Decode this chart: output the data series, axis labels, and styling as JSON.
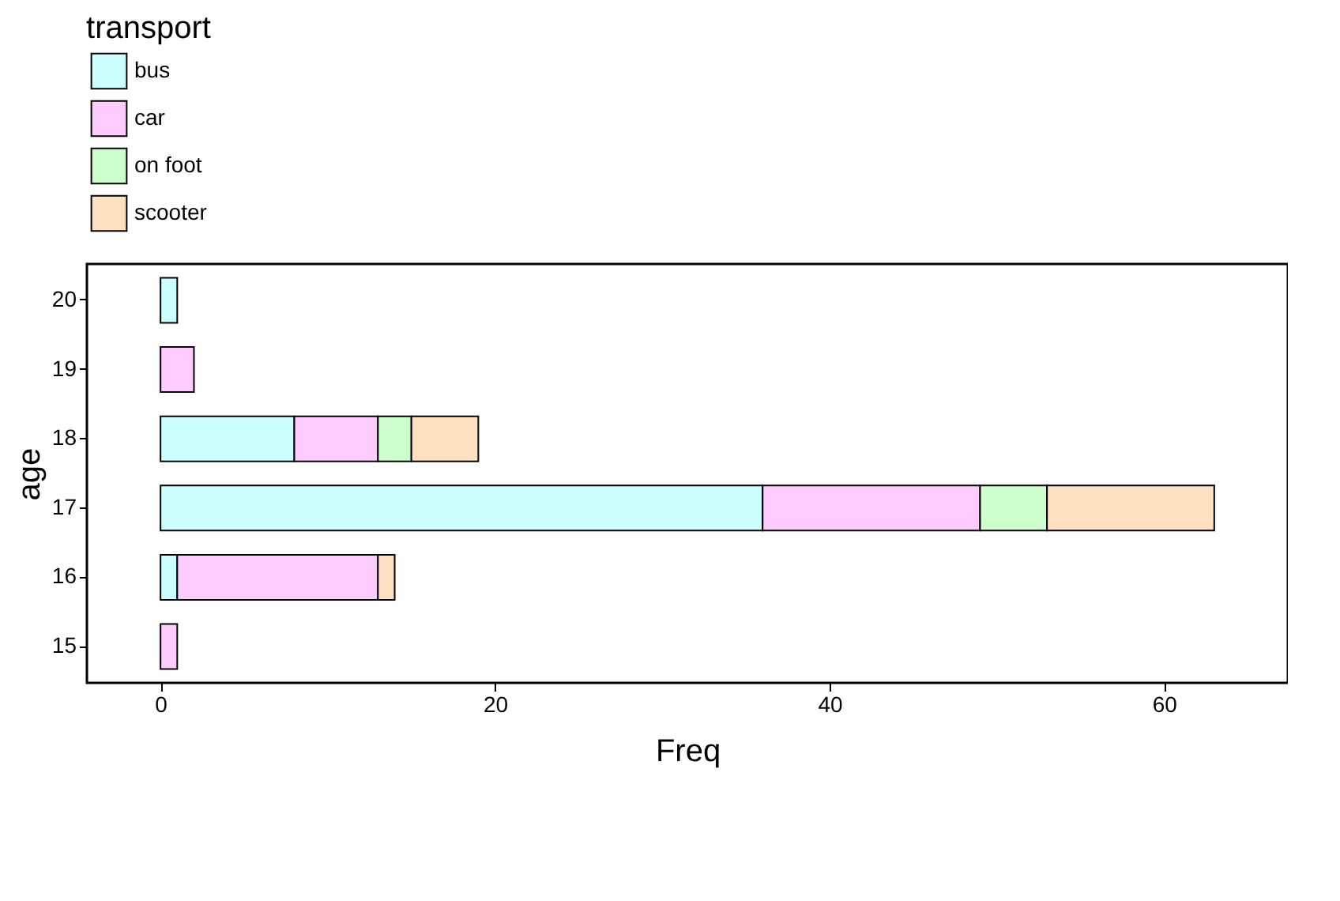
{
  "chart_data": {
    "type": "bar",
    "orientation": "horizontal",
    "stacked": true,
    "legend_title": "transport",
    "xlabel": "Freq",
    "ylabel": "age",
    "categories": [
      "20",
      "19",
      "18",
      "17",
      "16",
      "15"
    ],
    "series": [
      {
        "name": "bus",
        "color": "#ccffff",
        "values": [
          1,
          null,
          8,
          36,
          1,
          null
        ]
      },
      {
        "name": "car",
        "color": "#ffccff",
        "values": [
          null,
          2,
          5,
          13,
          12,
          1
        ]
      },
      {
        "name": "on foot",
        "color": "#ccffcc",
        "values": [
          null,
          null,
          2,
          4,
          null,
          null
        ]
      },
      {
        "name": "scooter",
        "color": "#ffe0c0",
        "values": [
          null,
          null,
          4,
          10,
          1,
          null
        ]
      }
    ],
    "xlim": [
      -4.4,
      67.4
    ],
    "xticks": [
      0,
      20,
      40,
      60
    ],
    "grid": false,
    "legend": "top"
  }
}
